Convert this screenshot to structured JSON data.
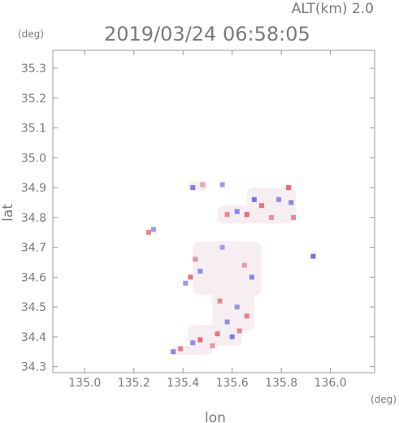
{
  "header": {
    "alt_label": "ALT(km) 2.0",
    "timestamp": "2019/03/24 06:58:05",
    "y_unit": "(deg)",
    "x_unit": "(deg)"
  },
  "chart_data": {
    "type": "heatmap",
    "xlabel": "lon",
    "ylabel": "lat",
    "xlim": [
      134.87,
      136.18
    ],
    "ylim": [
      34.28,
      35.36
    ],
    "x_ticks": [
      135.0,
      135.2,
      135.4,
      135.6,
      135.8,
      136.0
    ],
    "x_tick_labels": [
      "135.0",
      "135.2",
      "135.4",
      "135.6",
      "135.8",
      "136.0"
    ],
    "y_ticks": [
      34.3,
      34.4,
      34.5,
      34.6,
      34.7,
      34.8,
      34.9,
      35.0,
      35.1,
      35.2,
      35.3
    ],
    "y_tick_labels": [
      "34.3",
      "34.4",
      "34.5",
      "34.6",
      "34.7",
      "34.8",
      "34.9",
      "35.0",
      "35.1",
      "35.2",
      "35.3"
    ],
    "grid": false,
    "colors": {
      "positive": "#e8606a",
      "negative": "#6a6ae8",
      "neutral": "#f7eef2",
      "axis": "#9a9a9a"
    },
    "echo_regions": [
      {
        "lon": [
          135.44,
          135.72
        ],
        "lat": [
          34.54,
          34.72
        ],
        "value": 0
      },
      {
        "lon": [
          135.52,
          135.69
        ],
        "lat": [
          34.42,
          34.56
        ],
        "value": 0
      },
      {
        "lon": [
          135.42,
          135.64
        ],
        "lat": [
          34.37,
          34.44
        ],
        "value": 0
      },
      {
        "lon": [
          135.35,
          135.52
        ],
        "lat": [
          34.34,
          34.37
        ],
        "value": 0
      },
      {
        "lon": [
          135.66,
          135.86
        ],
        "lat": [
          34.78,
          34.9
        ],
        "value": 0
      },
      {
        "lon": [
          135.54,
          135.68
        ],
        "lat": [
          34.78,
          34.84
        ],
        "value": 0
      },
      {
        "lon": [
          135.42,
          135.5
        ],
        "lat": [
          34.89,
          34.92
        ],
        "value": 0
      }
    ],
    "cells": [
      {
        "lon": 135.44,
        "lat": 34.9,
        "value": -0.8
      },
      {
        "lon": 135.48,
        "lat": 34.91,
        "value": 0.3
      },
      {
        "lon": 135.56,
        "lat": 34.91,
        "value": -0.5
      },
      {
        "lon": 135.58,
        "lat": 34.81,
        "value": 0.6
      },
      {
        "lon": 135.62,
        "lat": 34.82,
        "value": -0.7
      },
      {
        "lon": 135.66,
        "lat": 34.81,
        "value": 0.9
      },
      {
        "lon": 135.69,
        "lat": 34.86,
        "value": -0.9
      },
      {
        "lon": 135.72,
        "lat": 34.84,
        "value": 0.8
      },
      {
        "lon": 135.76,
        "lat": 34.8,
        "value": 0.5
      },
      {
        "lon": 135.79,
        "lat": 34.86,
        "value": -0.6
      },
      {
        "lon": 135.83,
        "lat": 34.9,
        "value": 0.9
      },
      {
        "lon": 135.84,
        "lat": 34.85,
        "value": -0.7
      },
      {
        "lon": 135.85,
        "lat": 34.8,
        "value": 0.6
      },
      {
        "lon": 135.28,
        "lat": 34.76,
        "value": -0.5
      },
      {
        "lon": 135.26,
        "lat": 34.75,
        "value": 0.7
      },
      {
        "lon": 135.45,
        "lat": 34.66,
        "value": 0.5
      },
      {
        "lon": 135.47,
        "lat": 34.62,
        "value": -0.6
      },
      {
        "lon": 135.43,
        "lat": 34.6,
        "value": 0.8
      },
      {
        "lon": 135.56,
        "lat": 34.7,
        "value": -0.4
      },
      {
        "lon": 135.65,
        "lat": 34.64,
        "value": 0.4
      },
      {
        "lon": 135.68,
        "lat": 34.6,
        "value": -0.7
      },
      {
        "lon": 135.55,
        "lat": 34.52,
        "value": 0.6
      },
      {
        "lon": 135.62,
        "lat": 34.5,
        "value": -0.5
      },
      {
        "lon": 135.66,
        "lat": 34.47,
        "value": 0.7
      },
      {
        "lon": 135.58,
        "lat": 34.45,
        "value": -0.6
      },
      {
        "lon": 135.54,
        "lat": 34.41,
        "value": 0.8
      },
      {
        "lon": 135.6,
        "lat": 34.4,
        "value": -0.8
      },
      {
        "lon": 135.47,
        "lat": 34.39,
        "value": 0.9
      },
      {
        "lon": 135.44,
        "lat": 34.38,
        "value": -0.6
      },
      {
        "lon": 135.39,
        "lat": 34.36,
        "value": 0.7
      },
      {
        "lon": 135.36,
        "lat": 34.35,
        "value": -0.7
      },
      {
        "lon": 135.52,
        "lat": 34.37,
        "value": 0.5
      },
      {
        "lon": 135.63,
        "lat": 34.42,
        "value": 0.6
      },
      {
        "lon": 135.93,
        "lat": 34.67,
        "value": -0.9
      },
      {
        "lon": 135.41,
        "lat": 34.58,
        "value": -0.5
      }
    ]
  }
}
